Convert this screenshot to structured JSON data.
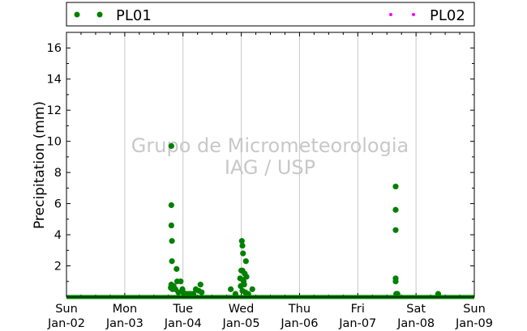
{
  "chart_data": {
    "type": "scatter",
    "ylabel": "Precipitation (mm)",
    "ylim": [
      0,
      17
    ],
    "yticks": [
      2,
      4,
      6,
      8,
      10,
      12,
      14,
      16
    ],
    "xlim": [
      "2014-01-02 00:00",
      "2014-01-09 00:00"
    ],
    "xticks": [
      {
        "day": "Sun",
        "date": "Jan-02"
      },
      {
        "day": "Mon",
        "date": "Jan-03"
      },
      {
        "day": "Tue",
        "date": "Jan-04"
      },
      {
        "day": "Wed",
        "date": "Jan-05"
      },
      {
        "day": "Thu",
        "date": "Jan-06"
      },
      {
        "day": "Fri",
        "date": "Jan-07"
      },
      {
        "day": "Sat",
        "date": "Jan-08"
      },
      {
        "day": "Sun",
        "date": "Jan-09"
      }
    ],
    "grid": "vertical",
    "legend_position": "top",
    "watermark": [
      "Grupo de Micrometeorologia",
      "IAG / USP"
    ],
    "series": [
      {
        "name": "PL01",
        "color": "#008000",
        "points": [
          {
            "day": 1.8,
            "y": 9.7
          },
          {
            "day": 1.8,
            "y": 5.9
          },
          {
            "day": 1.8,
            "y": 4.6
          },
          {
            "day": 1.81,
            "y": 3.6
          },
          {
            "day": 1.81,
            "y": 2.3
          },
          {
            "day": 1.79,
            "y": 0.6
          },
          {
            "day": 1.8,
            "y": 0.8
          },
          {
            "day": 1.82,
            "y": 0.5
          },
          {
            "day": 1.84,
            "y": 0.7
          },
          {
            "day": 1.87,
            "y": 0.5
          },
          {
            "day": 1.89,
            "y": 1.8
          },
          {
            "day": 1.9,
            "y": 1.0
          },
          {
            "day": 1.92,
            "y": 0.3
          },
          {
            "day": 1.96,
            "y": 1.0
          },
          {
            "day": 1.99,
            "y": 0.5
          },
          {
            "day": 2.0,
            "y": 0.3
          },
          {
            "day": 2.06,
            "y": 0.2
          },
          {
            "day": 2.1,
            "y": 0.2
          },
          {
            "day": 2.13,
            "y": 0.2
          },
          {
            "day": 2.18,
            "y": 0.2
          },
          {
            "day": 2.22,
            "y": 0.5
          },
          {
            "day": 2.27,
            "y": 0.4
          },
          {
            "day": 2.3,
            "y": 0.8
          },
          {
            "day": 2.32,
            "y": 0.3
          },
          {
            "day": 2.82,
            "y": 0.5
          },
          {
            "day": 2.9,
            "y": 0.2
          },
          {
            "day": 2.98,
            "y": 1.2
          },
          {
            "day": 2.99,
            "y": 0.7
          },
          {
            "day": 3.0,
            "y": 1.7
          },
          {
            "day": 3.01,
            "y": 3.6
          },
          {
            "day": 3.02,
            "y": 3.3
          },
          {
            "day": 3.03,
            "y": 2.8
          },
          {
            "day": 3.02,
            "y": 1.7
          },
          {
            "day": 3.03,
            "y": 1.1
          },
          {
            "day": 3.04,
            "y": 1.0
          },
          {
            "day": 3.05,
            "y": 0.8
          },
          {
            "day": 3.06,
            "y": 1.5
          },
          {
            "day": 3.08,
            "y": 2.3
          },
          {
            "day": 3.09,
            "y": 1.3
          },
          {
            "day": 3.02,
            "y": 0.4
          },
          {
            "day": 3.07,
            "y": 0.3
          },
          {
            "day": 3.12,
            "y": 0.2
          },
          {
            "day": 3.19,
            "y": 0.5
          },
          {
            "day": 5.65,
            "y": 7.1
          },
          {
            "day": 5.65,
            "y": 5.6
          },
          {
            "day": 5.65,
            "y": 4.3
          },
          {
            "day": 5.65,
            "y": 1.2
          },
          {
            "day": 5.65,
            "y": 1.0
          },
          {
            "day": 5.66,
            "y": 0.2
          },
          {
            "day": 5.68,
            "y": 0.2
          },
          {
            "day": 6.38,
            "y": 0.2
          }
        ],
        "baseline": {
          "from_day": 0,
          "to_day": 7,
          "y": 0
        }
      },
      {
        "name": "PL02",
        "color": "#ff00ff",
        "points": []
      }
    ]
  }
}
